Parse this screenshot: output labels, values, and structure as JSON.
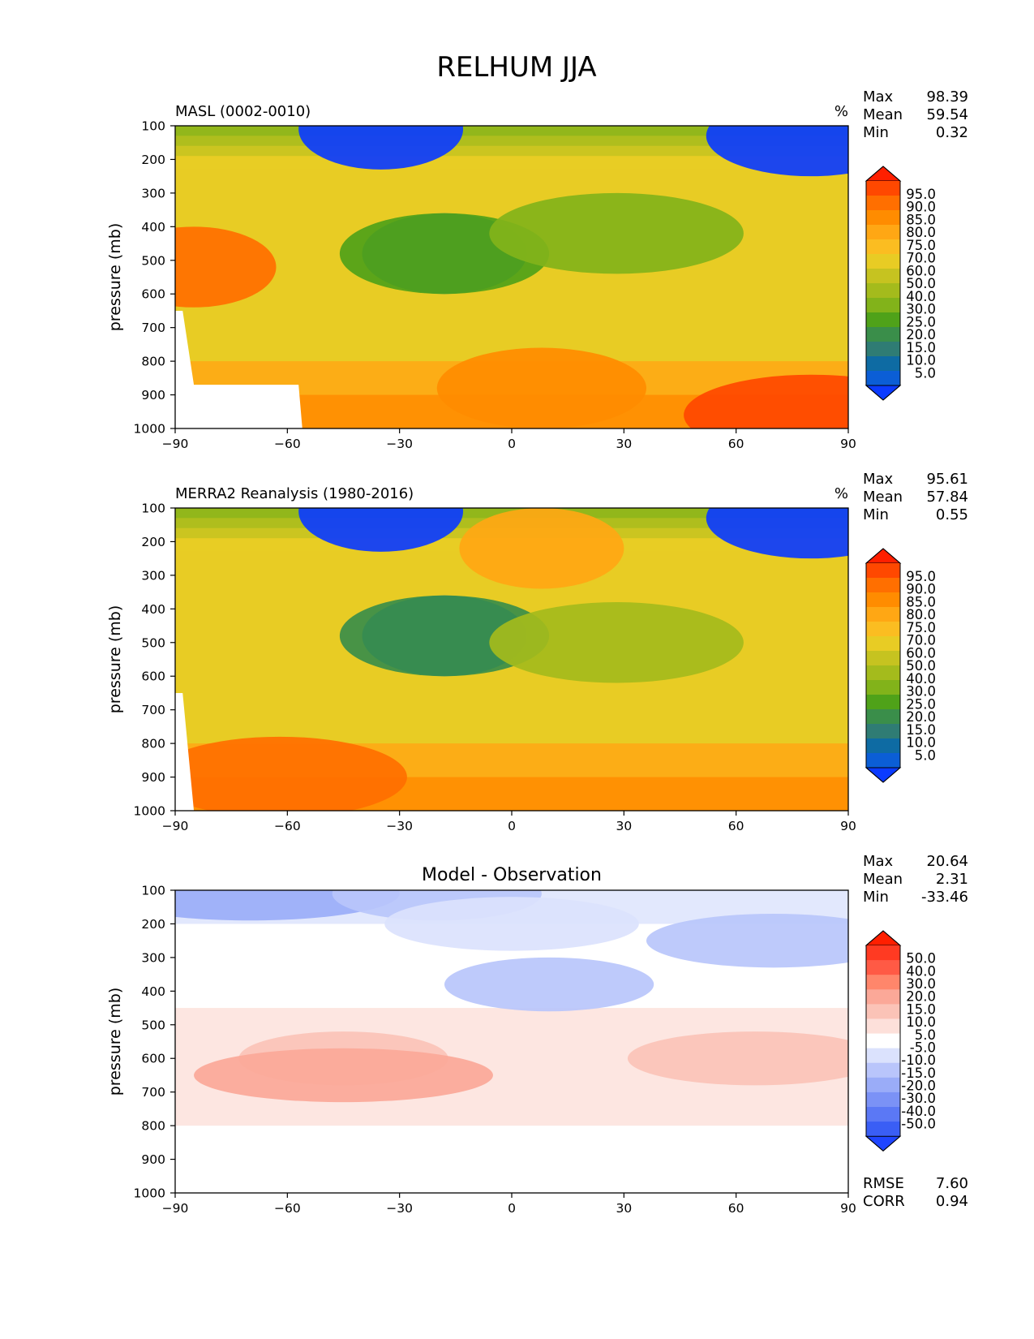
{
  "figure": {
    "title": "RELHUM JJA"
  },
  "chart_data": [
    {
      "type": "heatmap",
      "title": "MASL (0002-0010)",
      "units": "%",
      "xlabel": "",
      "ylabel": "pressure (mb)",
      "xlim": [
        -90,
        90
      ],
      "ylim": [
        1000,
        100
      ],
      "x_ticks": [
        "−90",
        "−60",
        "−30",
        "0",
        "30",
        "60",
        "90"
      ],
      "y_ticks": [
        "100",
        "200",
        "300",
        "400",
        "500",
        "600",
        "700",
        "800",
        "900",
        "1000"
      ],
      "stats": [
        {
          "label": "Max",
          "value": "98.39"
        },
        {
          "label": "Mean",
          "value": "59.54"
        },
        {
          "label": "Min",
          "value": "0.32"
        }
      ],
      "colorbar": {
        "labels": [
          "95.0",
          "90.0",
          "85.0",
          "80.0",
          "75.0",
          "70.0",
          "60.0",
          "50.0",
          "40.0",
          "30.0",
          "25.0",
          "20.0",
          "15.0",
          "10.0",
          "5.0"
        ],
        "colors": [
          "#ff1f00",
          "#ff4800",
          "#ff6f00",
          "#ff8c00",
          "#ffa714",
          "#fbbd21",
          "#e8cc24",
          "#c6c320",
          "#a4bb1c",
          "#82b31a",
          "#4fa219",
          "#3a8e4a",
          "#2f7c74",
          "#0e6ba3",
          "#0b5ed6",
          "#0b3bff"
        ]
      },
      "features": [
        {
          "x": -18,
          "p": 480,
          "value": 16
        },
        {
          "x": -18,
          "p": 480,
          "value": 28
        },
        {
          "x": 28,
          "p": 420,
          "value": 38
        },
        {
          "x": -35,
          "p": 110,
          "value": 3
        },
        {
          "x": 80,
          "p": 130,
          "value": 3
        },
        {
          "x": 80,
          "p": 960,
          "value": 92
        },
        {
          "x": -85,
          "p": 520,
          "value": 88
        },
        {
          "x": 8,
          "p": 880,
          "value": 82
        }
      ]
    },
    {
      "type": "heatmap",
      "title": "MERRA2 Reanalysis (1980-2016)",
      "units": "%",
      "xlabel": "",
      "ylabel": "pressure (mb)",
      "xlim": [
        -90,
        90
      ],
      "ylim": [
        1000,
        100
      ],
      "x_ticks": [
        "−90",
        "−60",
        "−30",
        "0",
        "30",
        "60",
        "90"
      ],
      "y_ticks": [
        "100",
        "200",
        "300",
        "400",
        "500",
        "600",
        "700",
        "800",
        "900",
        "1000"
      ],
      "stats": [
        {
          "label": "Max",
          "value": "95.61"
        },
        {
          "label": "Mean",
          "value": "57.84"
        },
        {
          "label": "Min",
          "value": "0.55"
        }
      ],
      "colorbar": {
        "labels": [
          "95.0",
          "90.0",
          "85.0",
          "80.0",
          "75.0",
          "70.0",
          "60.0",
          "50.0",
          "40.0",
          "30.0",
          "25.0",
          "20.0",
          "15.0",
          "10.0",
          "5.0"
        ],
        "colors": [
          "#ff1f00",
          "#ff4800",
          "#ff6f00",
          "#ff8c00",
          "#ffa714",
          "#fbbd21",
          "#e8cc24",
          "#c6c320",
          "#a4bb1c",
          "#82b31a",
          "#4fa219",
          "#3a8e4a",
          "#2f7c74",
          "#0e6ba3",
          "#0b5ed6",
          "#0b3bff"
        ]
      },
      "features": [
        {
          "x": -18,
          "p": 480,
          "value": 12
        },
        {
          "x": -18,
          "p": 480,
          "value": 22
        },
        {
          "x": 28,
          "p": 500,
          "value": 40
        },
        {
          "x": -35,
          "p": 110,
          "value": 3
        },
        {
          "x": 80,
          "p": 130,
          "value": 3
        },
        {
          "x": -62,
          "p": 900,
          "value": 86
        },
        {
          "x": 8,
          "p": 220,
          "value": 76
        }
      ]
    },
    {
      "type": "heatmap",
      "title": "Model - Observation",
      "units": "",
      "xlabel": "",
      "ylabel": "pressure (mb)",
      "xlim": [
        -90,
        90
      ],
      "ylim": [
        1000,
        100
      ],
      "x_ticks": [
        "−90",
        "−60",
        "−30",
        "0",
        "30",
        "60",
        "90"
      ],
      "y_ticks": [
        "100",
        "200",
        "300",
        "400",
        "500",
        "600",
        "700",
        "800",
        "900",
        "1000"
      ],
      "stats": [
        {
          "label": "Max",
          "value": "20.64"
        },
        {
          "label": "Mean",
          "value": "2.31"
        },
        {
          "label": "Min",
          "value": "-33.46"
        }
      ],
      "extra_stats": [
        {
          "label": "RMSE",
          "value": "7.60"
        },
        {
          "label": "CORR",
          "value": "0.94"
        }
      ],
      "colorbar": {
        "labels": [
          "50.0",
          "40.0",
          "30.0",
          "20.0",
          "15.0",
          "10.0",
          "5.0",
          "-5.0",
          "-10.0",
          "-15.0",
          "-20.0",
          "-30.0",
          "-40.0",
          "-50.0"
        ],
        "colors": [
          "#ff1f00",
          "#ff3a22",
          "#ff5a45",
          "#ff866b",
          "#fba898",
          "#fbc3b7",
          "#fde0da",
          "#ffffff",
          "#dbe2fd",
          "#b9c5fb",
          "#9aacf8",
          "#7b92f6",
          "#5b78f5",
          "#3a5ef5",
          "#1f45ff"
        ]
      },
      "features": [
        {
          "x": -45,
          "p": 600,
          "value": 12
        },
        {
          "x": 65,
          "p": 600,
          "value": 12
        },
        {
          "x": -45,
          "p": 650,
          "value": 17
        },
        {
          "x": 10,
          "p": 380,
          "value": -12
        },
        {
          "x": 70,
          "p": 250,
          "value": -12
        },
        {
          "x": -70,
          "p": 110,
          "value": -18
        },
        {
          "x": -20,
          "p": 110,
          "value": -12
        },
        {
          "x": 0,
          "p": 200,
          "value": -7
        }
      ]
    }
  ]
}
